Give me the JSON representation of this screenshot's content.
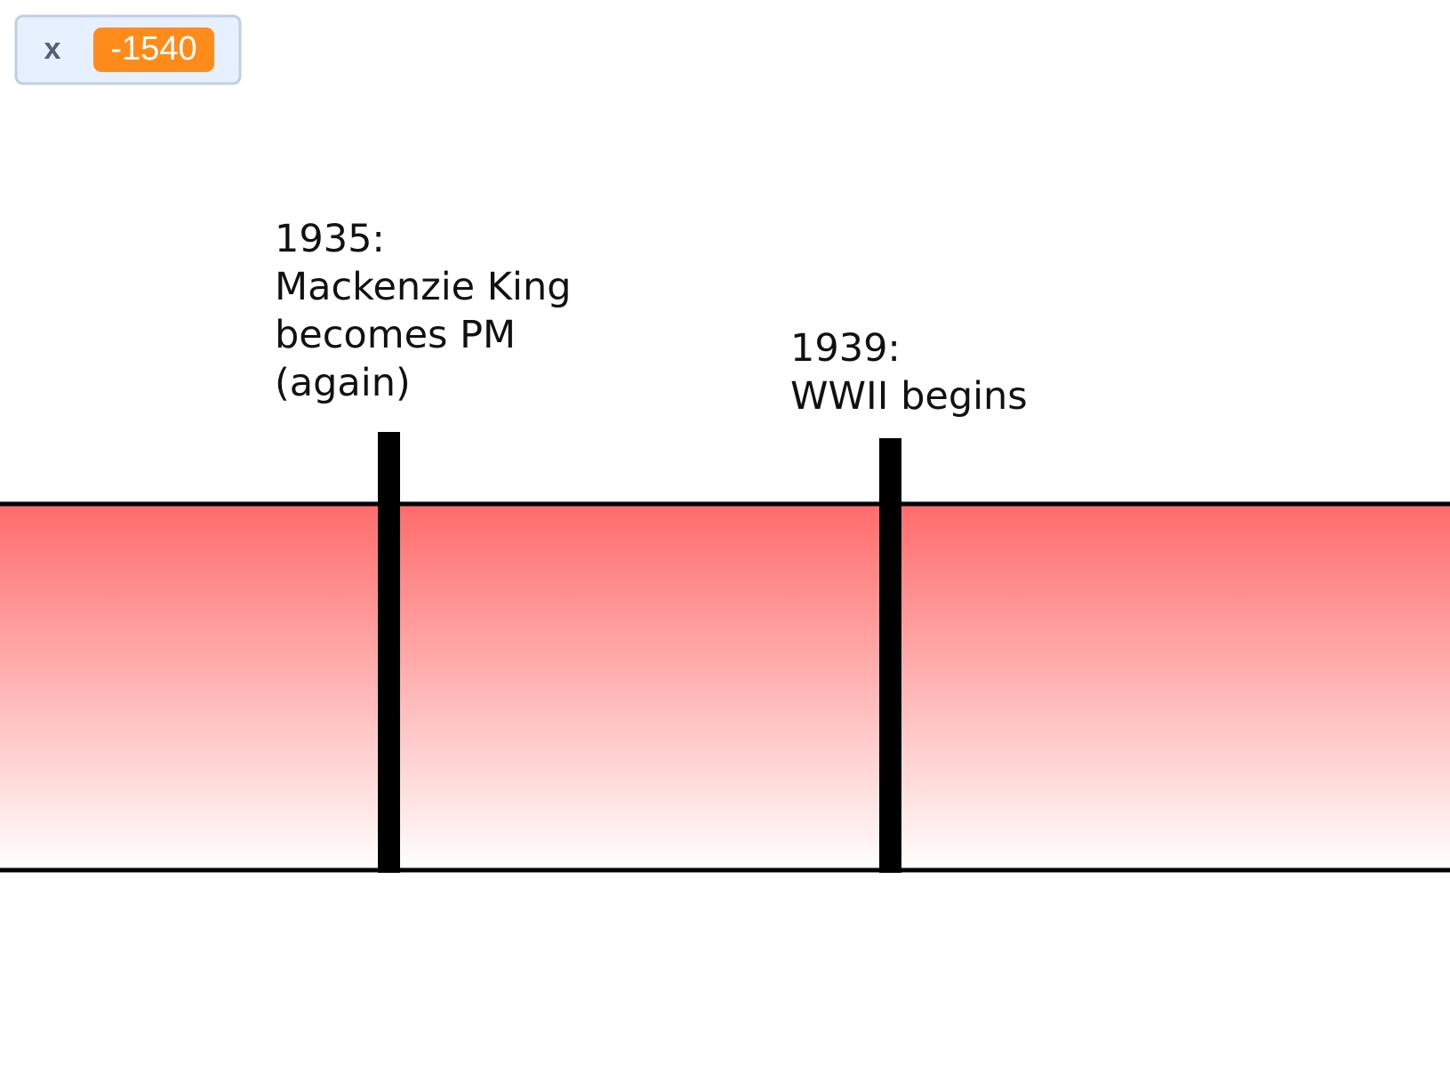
{
  "monitor": {
    "label": "x",
    "value": -1540
  },
  "events": [
    {
      "lines": [
        "1935:",
        "Mackenzie King",
        "becomes PM",
        "(again)"
      ]
    },
    {
      "lines": [
        "1939:",
        "WWII begins"
      ]
    }
  ]
}
